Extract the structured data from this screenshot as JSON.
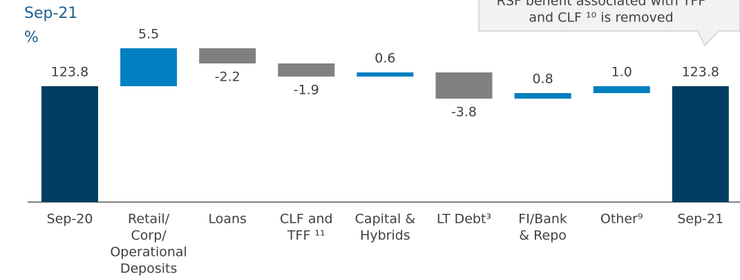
{
  "chart_data": {
    "type": "waterfall",
    "title": "Sep-21",
    "subtitle": "%",
    "annotation": [
      "RSF benefit associated with TFF",
      "and CLF ¹⁰ is removed"
    ],
    "categories": [
      [
        "Sep-20"
      ],
      [
        "Retail/",
        "Corp/",
        "Operational",
        "Deposits"
      ],
      [
        "Loans"
      ],
      [
        "CLF and",
        "TFF ¹¹"
      ],
      [
        "Capital &",
        "Hybrids"
      ],
      [
        "LT Debt³"
      ],
      [
        "FI/Bank",
        "& Repo"
      ],
      [
        "Other⁹"
      ],
      [
        "Sep-21"
      ]
    ],
    "values": [
      123.8,
      5.5,
      -2.2,
      -1.9,
      0.6,
      -3.8,
      0.8,
      1.0,
      123.8
    ],
    "value_labels": [
      "123.8",
      "5.5",
      "-2.2",
      "-1.9",
      "0.6",
      "-3.8",
      "0.8",
      "1.0",
      "123.8"
    ],
    "is_total": [
      true,
      false,
      false,
      false,
      false,
      false,
      false,
      false,
      true
    ],
    "total_color": "#003f63",
    "increase_color": "#0080c0",
    "decrease_color": "#808080",
    "ylim": [
      107,
      135
    ]
  }
}
